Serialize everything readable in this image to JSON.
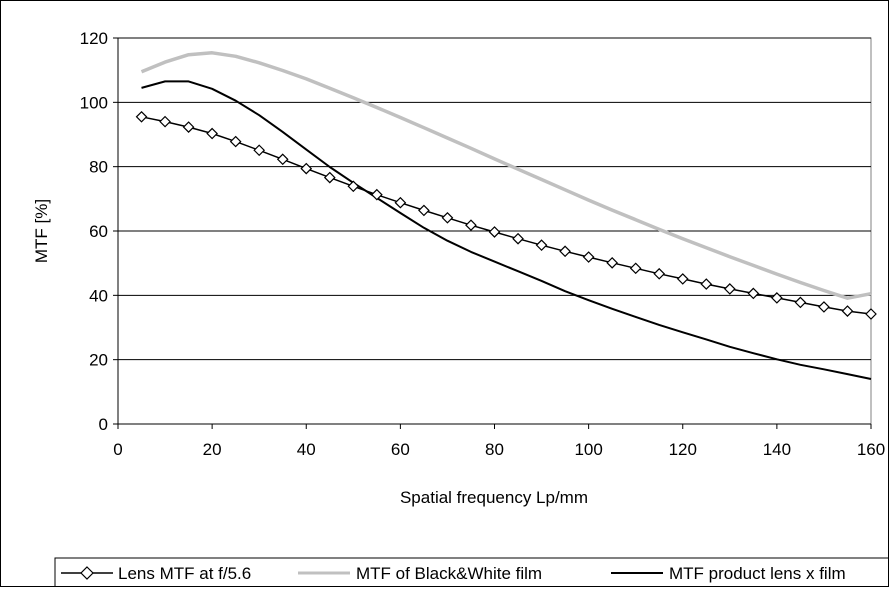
{
  "chart_data": {
    "type": "line",
    "title": "",
    "xlabel": "Spatial frequency  Lp/mm",
    "ylabel": "MTF  [%]",
    "xlim": [
      0,
      160
    ],
    "ylim": [
      0,
      120
    ],
    "x_ticks": [
      "0",
      "20",
      "40",
      "60",
      "80",
      "100",
      "120",
      "140",
      "160"
    ],
    "y_ticks": [
      "0",
      "20",
      "40",
      "60",
      "80",
      "100",
      "120"
    ],
    "grid": "horizontal",
    "legend_position": "bottom",
    "series": [
      {
        "name": "Lens MTF at f/5.6",
        "color": "#000000",
        "marker": "diamond",
        "x": [
          5,
          10,
          15,
          20,
          25,
          30,
          35,
          40,
          45,
          50,
          55,
          60,
          65,
          70,
          75,
          80,
          85,
          90,
          95,
          100,
          105,
          110,
          115,
          120,
          125,
          130,
          135,
          140,
          145,
          150,
          155,
          160
        ],
        "y": [
          95.5,
          94,
          92.3,
          90.3,
          87.8,
          85.1,
          82.3,
          79.4,
          76.6,
          73.9,
          71.3,
          68.8,
          66.4,
          64.1,
          61.8,
          59.7,
          57.6,
          55.6,
          53.7,
          51.9,
          50.1,
          48.4,
          46.7,
          45.1,
          43.5,
          42,
          40.6,
          39.2,
          37.8,
          36.4,
          35.1,
          34.2
        ]
      },
      {
        "name": "MTF of Black&White film",
        "color": "#c0c0c0",
        "marker": "none",
        "x": [
          5,
          10,
          15,
          20,
          25,
          30,
          35,
          40,
          45,
          50,
          55,
          60,
          65,
          70,
          75,
          80,
          85,
          90,
          95,
          100,
          105,
          110,
          115,
          120,
          125,
          130,
          135,
          140,
          145,
          150,
          155,
          160
        ],
        "y": [
          109.5,
          112.5,
          114.8,
          115.4,
          114.3,
          112.3,
          109.9,
          107.3,
          104.4,
          101.4,
          98.4,
          95.3,
          92.1,
          88.9,
          85.7,
          82.4,
          79.2,
          76,
          72.8,
          69.6,
          66.5,
          63.5,
          60.5,
          57.6,
          54.8,
          52,
          49.3,
          46.6,
          44,
          41.5,
          39.1,
          40.5
        ]
      },
      {
        "name": "MTF product lens x film",
        "color": "#000000",
        "marker": "none",
        "x": [
          5,
          10,
          15,
          20,
          25,
          30,
          35,
          40,
          45,
          50,
          55,
          60,
          65,
          70,
          75,
          80,
          85,
          90,
          95,
          100,
          105,
          110,
          115,
          120,
          125,
          130,
          135,
          140,
          145,
          150,
          155,
          160
        ],
        "y": [
          104.5,
          106.5,
          106.5,
          104.2,
          100.5,
          96,
          90.8,
          85.3,
          79.9,
          75,
          70.3,
          65.6,
          61,
          57,
          53.5,
          50.5,
          47.5,
          44.5,
          41.3,
          38.5,
          35.8,
          33.3,
          30.8,
          28.5,
          26.3,
          24,
          22,
          20.1,
          18.4,
          17,
          15.5,
          14
        ]
      }
    ]
  }
}
